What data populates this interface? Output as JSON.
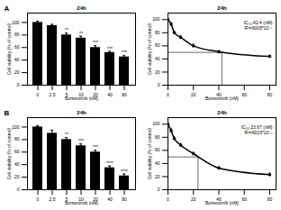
{
  "chart_data": [
    {
      "type": "bar",
      "panel": "A",
      "title": "24h",
      "x_label": "Bortezomib (nM)",
      "y_label": "Cell viability (% of control)",
      "categories": [
        "0",
        "2.5",
        "5",
        "10",
        "20",
        "40",
        "80"
      ],
      "values": [
        100,
        95,
        80,
        75,
        60,
        52,
        45
      ],
      "errors": [
        2,
        2,
        3,
        3,
        3,
        2,
        2
      ],
      "significance": [
        "",
        "",
        "**",
        "**",
        "***",
        "***",
        "***"
      ],
      "color": "#000000",
      "ylim": [
        0,
        115
      ],
      "yticks": [
        0,
        20,
        40,
        60,
        80,
        100
      ]
    },
    {
      "type": "line",
      "title": "24h",
      "x_label": "Bortezomib (nM)",
      "y_label": "Cell viability (% of control)",
      "x": [
        0,
        2.5,
        5,
        10,
        20,
        40,
        80
      ],
      "values": [
        100,
        93,
        80,
        73,
        60,
        51,
        44
      ],
      "errors": [
        2,
        3,
        3,
        3,
        3,
        2,
        2
      ],
      "ic50": 42.4,
      "ic50_y": 50,
      "annotations": [
        "IC₅₀:42.4 (nM)",
        "R²=9005*10⁻⁵"
      ],
      "color": "#000000",
      "marker": "circle",
      "xlim": [
        0,
        85
      ],
      "xticks": [
        0,
        20,
        40,
        60,
        80
      ],
      "ylim": [
        0,
        110
      ],
      "yticks": [
        0,
        20,
        40,
        60,
        80,
        100
      ]
    },
    {
      "type": "bar",
      "panel": "B",
      "title": "24h",
      "x_label": "Bortezomib (nM)",
      "y_label": "Cell viability (% of control)",
      "categories": [
        "0",
        "2.5",
        "5",
        "10",
        "20",
        "40",
        "80"
      ],
      "values": [
        100,
        90,
        80,
        70,
        60,
        35,
        22
      ],
      "errors": [
        2,
        5,
        3,
        3,
        3,
        3,
        3
      ],
      "significance": [
        "",
        "",
        "**",
        "***",
        "***",
        "****",
        "****"
      ],
      "color": "#000000",
      "ylim": [
        0,
        115
      ],
      "yticks": [
        0,
        20,
        40,
        60,
        80,
        100
      ]
    },
    {
      "type": "line",
      "title": "24h",
      "x_label": "Bortezomib (nM)",
      "y_label": "Cell viability (% of control)",
      "x": [
        0,
        2.5,
        5,
        10,
        20,
        40,
        80
      ],
      "values": [
        100,
        90,
        78,
        68,
        55,
        33,
        23
      ],
      "errors": [
        2,
        4,
        3,
        3,
        3,
        3,
        3
      ],
      "ic50": 23.67,
      "ic50_y": 50,
      "annotations": [
        "IC₅₀:23.67 (nM)",
        "R²=9015*10⁻⁵"
      ],
      "color": "#000000",
      "marker": "circle",
      "xlim": [
        0,
        85
      ],
      "xticks": [
        0,
        20,
        40,
        60,
        80
      ],
      "ylim": [
        0,
        110
      ],
      "yticks": [
        0,
        20,
        40,
        60,
        80,
        100
      ]
    }
  ]
}
